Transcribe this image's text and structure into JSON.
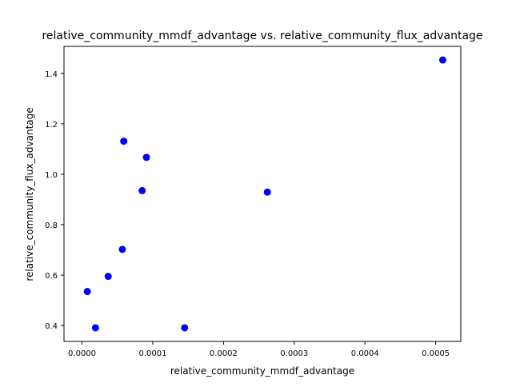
{
  "chart_data": {
    "type": "scatter",
    "title": "relative_community_mmdf_advantage vs. relative_community_flux_advantage",
    "xlabel": "relative_community_mmdf_advantage",
    "ylabel": "relative_community_flux_advantage",
    "xlim": [
      -2.55e-05,
      0.0005355
    ],
    "ylim": [
      0.3369,
      1.5071
    ],
    "xticks": [
      {
        "value": 0.0,
        "label": "0.0000"
      },
      {
        "value": 0.0001,
        "label": "0.0001"
      },
      {
        "value": 0.0002,
        "label": "0.0002"
      },
      {
        "value": 0.0003,
        "label": "0.0003"
      },
      {
        "value": 0.0004,
        "label": "0.0004"
      },
      {
        "value": 0.0005,
        "label": "0.0005"
      }
    ],
    "yticks": [
      {
        "value": 0.4,
        "label": "0.4"
      },
      {
        "value": 0.6,
        "label": "0.6"
      },
      {
        "value": 0.8,
        "label": "0.8"
      },
      {
        "value": 1.0,
        "label": "1.0"
      },
      {
        "value": 1.2,
        "label": "1.2"
      },
      {
        "value": 1.4,
        "label": "1.4"
      }
    ],
    "grid": false,
    "marker_color": "#0000ff",
    "points": [
      {
        "x": 7.5e-06,
        "y": 0.535
      },
      {
        "x": 1.9e-05,
        "y": 0.391
      },
      {
        "x": 3.7e-05,
        "y": 0.595
      },
      {
        "x": 5.7e-05,
        "y": 0.702
      },
      {
        "x": 5.9e-05,
        "y": 1.131
      },
      {
        "x": 8.5e-05,
        "y": 0.935
      },
      {
        "x": 9.1e-05,
        "y": 1.067
      },
      {
        "x": 0.000145,
        "y": 0.391
      },
      {
        "x": 0.000262,
        "y": 0.929
      },
      {
        "x": 0.00051,
        "y": 1.453
      }
    ]
  }
}
